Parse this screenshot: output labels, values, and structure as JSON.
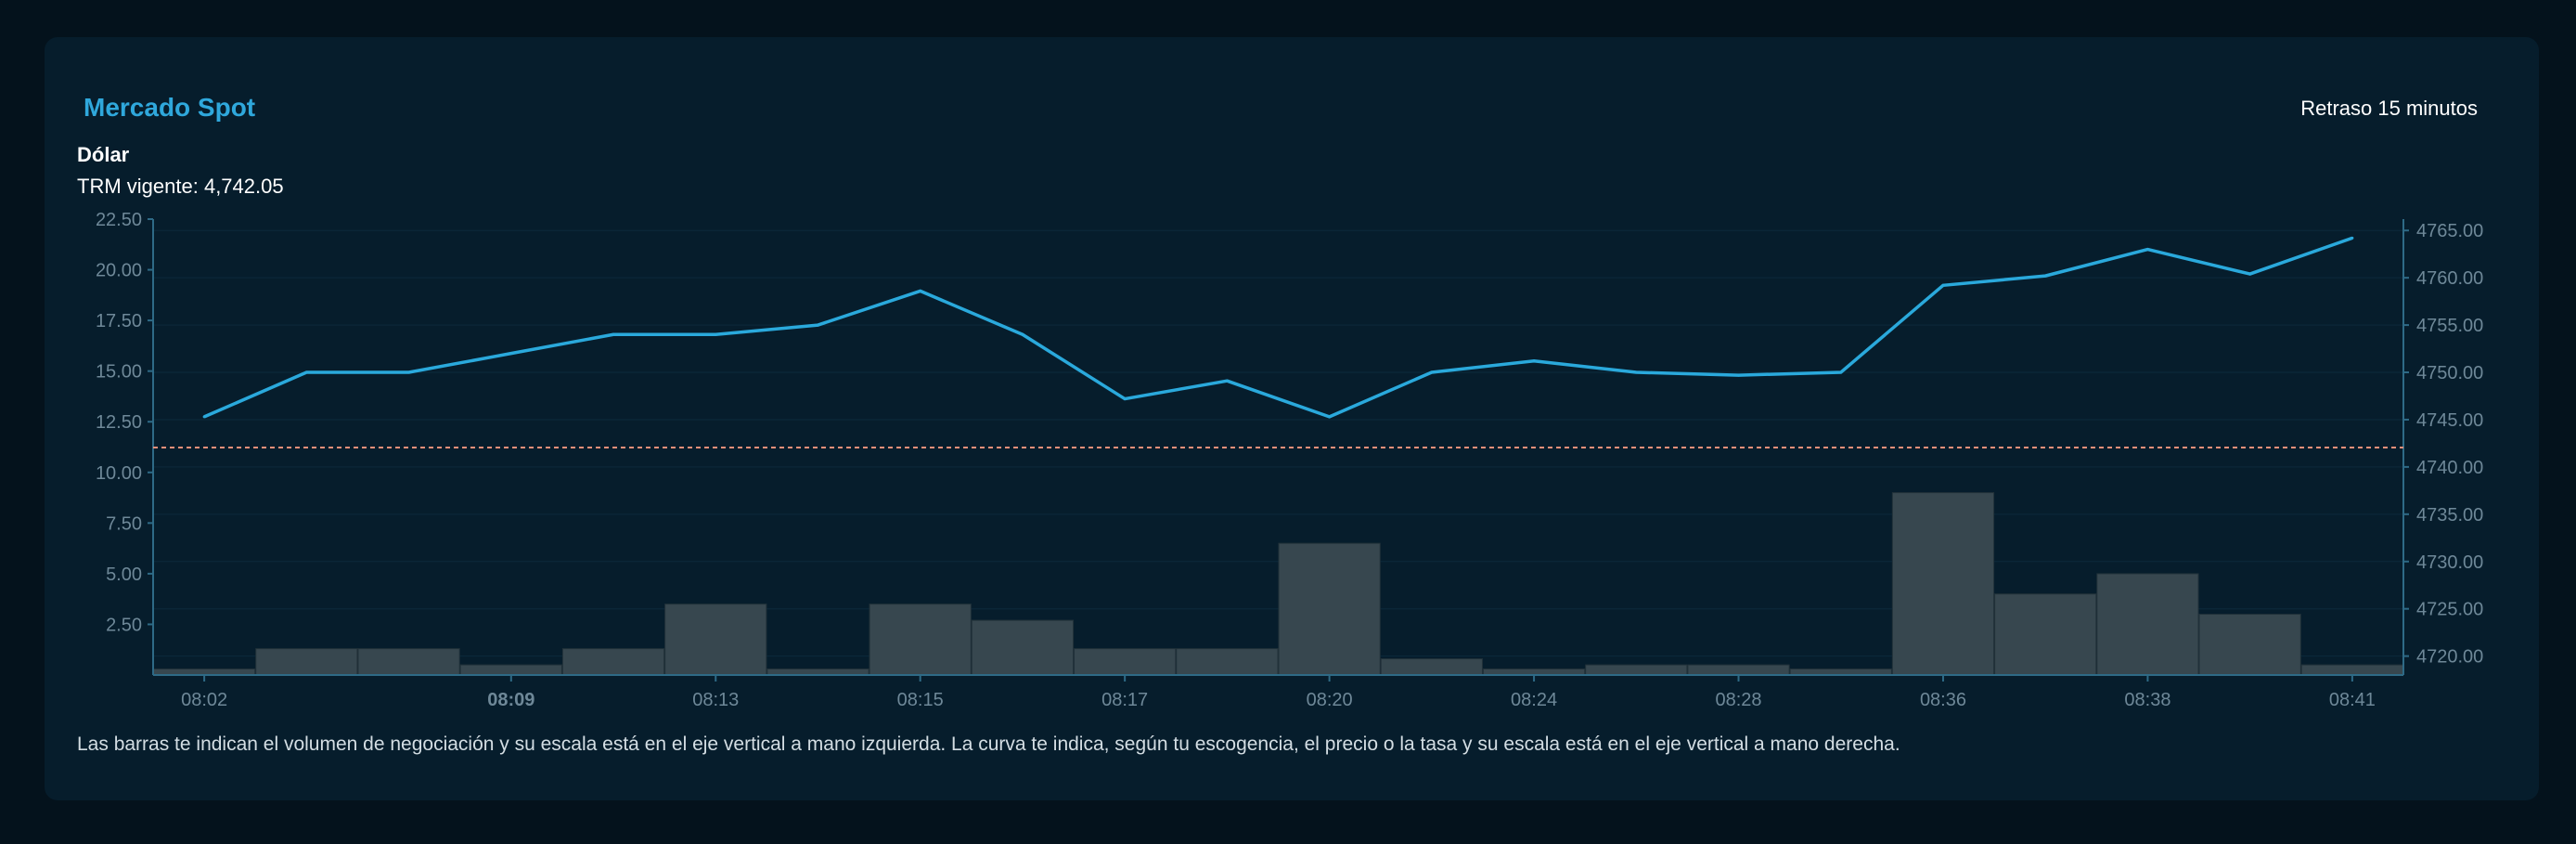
{
  "header": {
    "title": "Mercado Spot",
    "delay": "Retraso 15 minutos",
    "currency": "Dólar",
    "trm_label": "TRM vigente:",
    "trm_value": "4,742.05"
  },
  "note": "Las barras te indican el volumen de negociación y su escala está en el eje vertical a mano izquierda. La curva te indica, según tu escogencia, el precio o la tasa y su escala está en el eje vertical a mano derecha.",
  "colors": {
    "accent": "#2fa8dc",
    "line": "#2aa9dc",
    "bar": "#37474f",
    "reference": "#f0907a",
    "axis": "#2e6a86",
    "tick_text": "#6e8898"
  },
  "chart_data": {
    "type": "bar+line",
    "x_ticks": [
      {
        "index": 0,
        "label": "08:02",
        "bold": false
      },
      {
        "index": 3,
        "label": "08:09",
        "bold": true
      },
      {
        "index": 5,
        "label": "08:13",
        "bold": false
      },
      {
        "index": 7,
        "label": "08:15",
        "bold": false
      },
      {
        "index": 9,
        "label": "08:17",
        "bold": false
      },
      {
        "index": 11,
        "label": "08:20",
        "bold": false
      },
      {
        "index": 13,
        "label": "08:24",
        "bold": false
      },
      {
        "index": 15,
        "label": "08:28",
        "bold": false
      },
      {
        "index": 17,
        "label": "08:36",
        "bold": false
      },
      {
        "index": 19,
        "label": "08:38",
        "bold": false
      },
      {
        "index": 21,
        "label": "08:41",
        "bold": false
      }
    ],
    "volume": {
      "name": "Volumen",
      "axis": "left",
      "values": [
        0.3,
        1.3,
        1.3,
        0.5,
        1.3,
        3.5,
        0.3,
        3.5,
        2.7,
        1.3,
        1.3,
        6.5,
        0.8,
        0.3,
        0.5,
        0.5,
        0.3,
        9.0,
        4.0,
        5.0,
        3.0,
        0.5
      ]
    },
    "price": {
      "name": "Precio",
      "axis": "right",
      "values": [
        4745.3,
        4750.0,
        4750.0,
        4752.0,
        4754.0,
        4754.0,
        4755.0,
        4758.6,
        4754.0,
        4747.2,
        4749.1,
        4745.3,
        4750.0,
        4751.2,
        4750.0,
        4749.7,
        4750.0,
        4759.2,
        4760.2,
        4763.0,
        4760.4,
        4764.2
      ]
    },
    "reference_line": {
      "label": "TRM vigente",
      "value": 4742.05
    },
    "left_axis": {
      "min": 0,
      "max": 22.5,
      "ticks": [
        "22.50",
        "20.00",
        "17.50",
        "15.00",
        "12.50",
        "10.00",
        "7.50",
        "5.00",
        "2.50"
      ]
    },
    "right_axis": {
      "min": 4718,
      "max": 4766.2,
      "ticks": [
        "4765.00",
        "4760.00",
        "4755.00",
        "4750.00",
        "4745.00",
        "4740.00",
        "4735.00",
        "4730.00",
        "4725.00",
        "4720.00"
      ]
    }
  }
}
